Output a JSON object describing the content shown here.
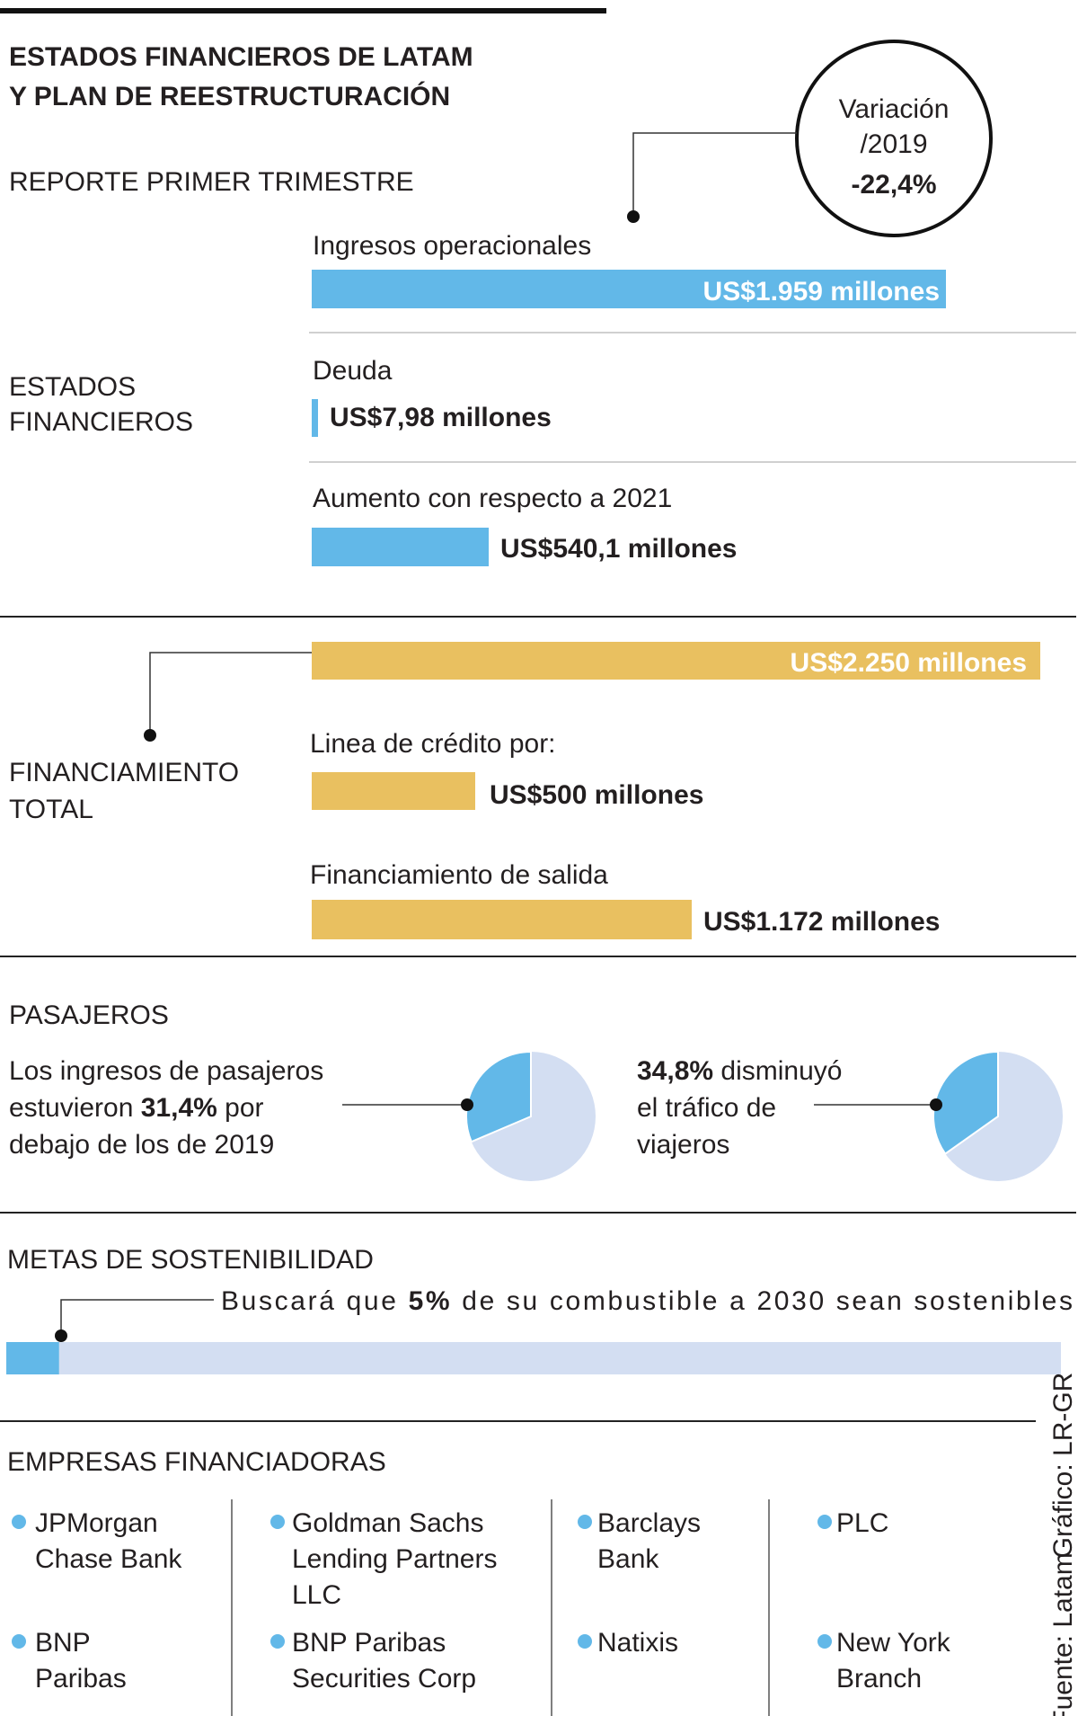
{
  "header": {
    "title_lines": [
      "ESTADOS FINANCIEROS DE LATAM",
      "Y PLAN DE REESTRUCTURACIÓN"
    ],
    "subtitle": "REPORTE PRIMER TRIMESTRE"
  },
  "variation": {
    "label_lines": [
      "Variación",
      "/2019"
    ],
    "value": "-22,4%"
  },
  "financial": {
    "label_lines": [
      "ESTADOS",
      "FINANCIEROS"
    ],
    "items": [
      {
        "label": "Ingresos operacionales",
        "value": "US$1.959 millones"
      },
      {
        "label": "Deuda",
        "value": "US$7,98 millones"
      },
      {
        "label": "Aumento con respecto a 2021",
        "value": "US$540,1 millones"
      }
    ]
  },
  "financing": {
    "label_lines": [
      "FINANCIAMIENTO",
      "TOTAL"
    ],
    "total": "US$2.250 millones",
    "items": [
      {
        "label": "Linea de crédito por:",
        "value": "US$500 millones"
      },
      {
        "label": "Financiamiento de salida",
        "value": "US$1.172 millones"
      }
    ]
  },
  "passengers": {
    "title": "PASAJEROS",
    "items": [
      {
        "lines": [
          [
            {
              "text": "Los ingresos de pasajeros"
            }
          ],
          [
            {
              "text": "estuvieron "
            },
            {
              "text": "31,4%",
              "bold": true
            },
            {
              "text": " por"
            }
          ],
          [
            {
              "text": "debajo de los de 2019"
            }
          ]
        ],
        "percent": 31.4
      },
      {
        "lines": [
          [
            {
              "text": "34,8%",
              "bold": true
            },
            {
              "text": " disminuyó"
            }
          ],
          [
            {
              "text": "el tráfico de"
            }
          ],
          [
            {
              "text": "viajeros"
            }
          ]
        ],
        "percent": 34.8
      }
    ]
  },
  "sustainability": {
    "title": "METAS DE SOSTENIBILIDAD",
    "segments": [
      {
        "text": "Buscará que "
      },
      {
        "text": "5%",
        "bold": true
      },
      {
        "text": " de su combustible a 2030 sean sostenibles"
      }
    ],
    "percent": 5
  },
  "lenders": {
    "title": "EMPRESAS FINANCIADORAS",
    "columns": [
      [
        [
          "JPMorgan",
          "Chase Bank"
        ],
        [
          "BNP",
          "Paribas"
        ]
      ],
      [
        [
          "Goldman Sachs",
          "Lending Partners",
          "LLC"
        ],
        [
          "BNP Paribas",
          "Securities Corp"
        ]
      ],
      [
        [
          "Barclays",
          "Bank"
        ],
        [
          "Natixis"
        ]
      ],
      [
        [
          "PLC"
        ],
        [
          "New York",
          "Branch"
        ]
      ]
    ]
  },
  "credits": [
    "Gráfico: LR-GR",
    "Fuente: Latam"
  ]
}
